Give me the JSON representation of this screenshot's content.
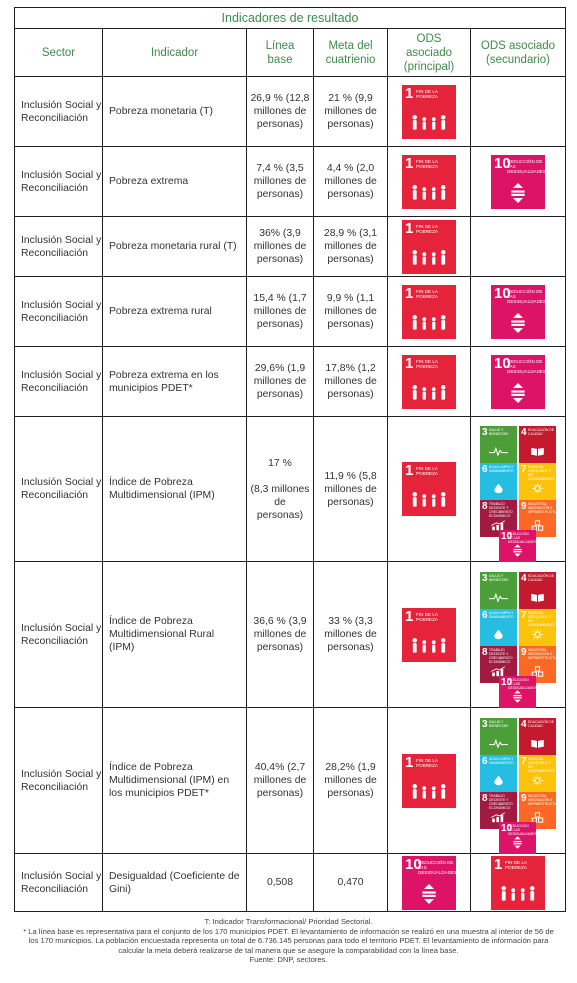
{
  "table": {
    "title": "Indicadores de resultado",
    "headers": {
      "sector": "Sector",
      "indicador": "Indicador",
      "linea_base": "Línea base",
      "meta": "Meta del cuatrienio",
      "ods_principal": "ODS asociado (principal)",
      "ods_secundario": "ODS asociado (secundario)"
    },
    "rows": [
      {
        "sector": "Inclusión Social y Reconciliación",
        "indicador": "Pobreza monetaria (T)",
        "linea_base": "26,9 % (12,8 millones de personas)",
        "meta": "21 % (9,9 millones de personas)",
        "ods_principal": [
          1
        ],
        "ods_secundario": []
      },
      {
        "sector": "Inclusión Social y Reconciliación",
        "indicador": "Pobreza extrema",
        "linea_base": "7,4 % (3,5 millones de personas)",
        "meta": "4,4 % (2,0 millones de personas)",
        "ods_principal": [
          1
        ],
        "ods_secundario": [
          10
        ]
      },
      {
        "sector": "Inclusión Social y Reconciliación",
        "indicador": "Pobreza monetaria rural (T)",
        "linea_base": "36% (3,9 millones de personas)",
        "meta": "28,9 % (3,1 millones de personas)",
        "ods_principal": [
          1
        ],
        "ods_secundario": []
      },
      {
        "sector": "Inclusión Social y Reconciliación",
        "indicador": "Pobreza extrema rural",
        "linea_base": "15,4 % (1,7 millones de personas)",
        "meta": "9,9 % (1,1 millones de personas)",
        "ods_principal": [
          1
        ],
        "ods_secundario": [
          10
        ]
      },
      {
        "sector": "Inclusión Social y Reconciliación",
        "indicador": "Pobreza extrema en los municipios PDET*",
        "linea_base": "29,6% (1,9 millones de personas)",
        "meta": "17,8% (1,2 millones de personas)",
        "ods_principal": [
          1
        ],
        "ods_secundario": [
          10
        ]
      },
      {
        "sector": "Inclusión Social y Reconciliación",
        "indicador": "Índice de Pobreza Multidimensional (IPM)",
        "linea_base": "17 %",
        "linea_base_2": "(8,3 millones de personas)",
        "meta": "11,9 % (5,8 millones de personas)",
        "ods_principal": [
          1
        ],
        "ods_secundario": [
          3,
          4,
          6,
          7,
          8,
          9,
          10
        ]
      },
      {
        "sector": "Inclusión Social y Reconciliación",
        "indicador": "Índice de Pobreza Multidimensional Rural (IPM)",
        "linea_base": "36,6 % (3,9 millones de personas)",
        "meta": "33 % (3,3 millones de personas)",
        "ods_principal": [
          1
        ],
        "ods_secundario": [
          3,
          4,
          6,
          7,
          8,
          9,
          10
        ]
      },
      {
        "sector": "Inclusión Social y Reconciliación",
        "indicador": "Índice de Pobreza Multidimensional (IPM) en los municipios PDET*",
        "linea_base": "40,4% (2,7 millones de personas)",
        "meta": "28,2% (1,9 millones de personas)",
        "ods_principal": [
          1
        ],
        "ods_secundario": [
          3,
          4,
          6,
          7,
          8,
          9,
          10
        ]
      },
      {
        "sector": "Inclusión Social y Reconciliación",
        "indicador": "Desigualdad (Coeficiente de Gini)",
        "linea_base": "0,508",
        "meta": "0,470",
        "ods_principal": [
          10
        ],
        "ods_secundario": [
          1
        ]
      }
    ]
  },
  "ods": {
    "1": {
      "label": "FIN DE LA POBREZA",
      "color": "#e5243b",
      "icon": "family-icon"
    },
    "3": {
      "label": "SALUD Y BIENESTAR",
      "color": "#4c9f38",
      "icon": "heartbeat-icon"
    },
    "4": {
      "label": "EDUCACIÓN DE CALIDAD",
      "color": "#c5192d",
      "icon": "book-icon"
    },
    "6": {
      "label": "AGUA LIMPIA Y SANEAMIENTO",
      "color": "#26bde2",
      "icon": "water-icon"
    },
    "7": {
      "label": "ENERGÍA ASEQUIBLE Y NO CONTAMINANTE",
      "color": "#fcc30b",
      "icon": "sun-icon"
    },
    "8": {
      "label": "TRABAJO DECENTE Y CRECIMIENTO ECONÓMICO",
      "color": "#a21942",
      "icon": "growth-icon"
    },
    "9": {
      "label": "INDUSTRIA, INNOVACIÓN E INFRAESTRUCTURA",
      "color": "#fd6925",
      "icon": "cubes-icon"
    },
    "10": {
      "label": "REDUCCIÓN DE LAS DESIGUALDADES",
      "color": "#dd1367",
      "icon": "equality-icon"
    }
  },
  "notes": {
    "transformational": "T: Indicador Transformacional/ Prioridad Sectorial.",
    "footnote": "* La línea base es representativa para el conjunto de los 170 municipios PDET. El levantamiento de información se realizó en una muestra al interior de 56 de los 170 municipios. La población encuestada representa un total de 6.736.145 personas para todo el territorio PDET. El levantamiento de información para calcular la meta deberá realizarse de tal manera que se asegure la comparabilidad con la línea base.",
    "source": "Fuente: DNP, sectores."
  }
}
